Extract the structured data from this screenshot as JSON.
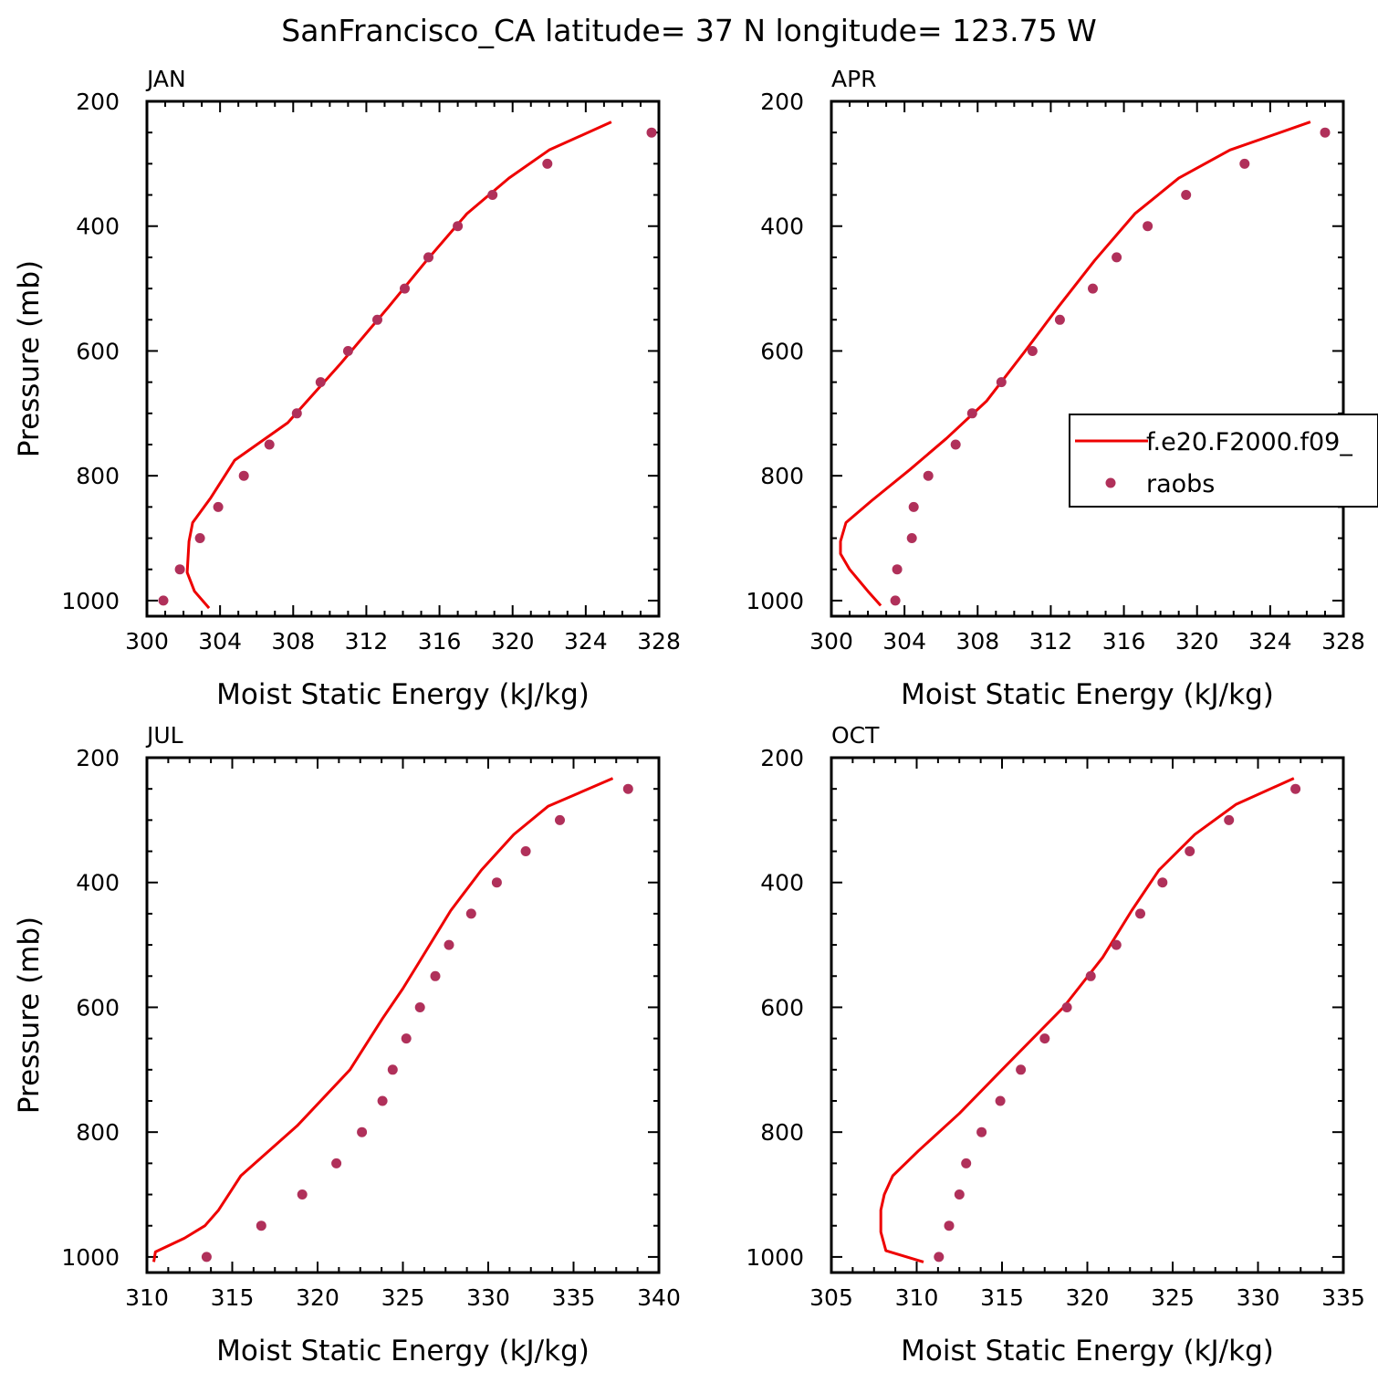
{
  "figure_title": "SanFrancisco_CA  latitude= 37 N longitude= 123.75 W",
  "legend": {
    "model_label": "f.e20.F2000.f09_",
    "obs_label": "raobs"
  },
  "colors": {
    "model": "#ee0000",
    "obs": "#b0305a"
  },
  "chart_data": [
    {
      "type": "line",
      "panel": "JAN",
      "title": "JAN",
      "xlabel": "Moist Static Energy (kJ/kg)",
      "ylabel": "Pressure (mb)",
      "xlim": [
        300,
        328
      ],
      "ylim": [
        1025,
        200
      ],
      "xticks": [
        300,
        304,
        308,
        312,
        316,
        320,
        324,
        328
      ],
      "yticks": [
        200,
        400,
        600,
        800,
        1000
      ],
      "series": [
        {
          "name": "f.e20.F2000.f09_",
          "kind": "line",
          "points": [
            [
              325.4,
              233
            ],
            [
              322,
              278
            ],
            [
              319.8,
              323
            ],
            [
              317.5,
              380
            ],
            [
              315.3,
              455
            ],
            [
              313.2,
              530
            ],
            [
              310.6,
              620
            ],
            [
              307.7,
              715
            ],
            [
              304.8,
              775
            ],
            [
              303.5,
              835
            ],
            [
              302.5,
              875
            ],
            [
              302.3,
              905
            ],
            [
              302.2,
              955
            ],
            [
              302.6,
              985
            ],
            [
              303.4,
              1012
            ]
          ]
        },
        {
          "name": "raobs",
          "kind": "scatter",
          "points": [
            [
              327.6,
              250
            ],
            [
              321.9,
              300
            ],
            [
              318.9,
              350
            ],
            [
              317,
              400
            ],
            [
              315.4,
              450
            ],
            [
              314.1,
              500
            ],
            [
              312.6,
              550
            ],
            [
              311,
              600
            ],
            [
              309.5,
              650
            ],
            [
              308.2,
              700
            ],
            [
              306.7,
              750
            ],
            [
              305.3,
              800
            ],
            [
              303.9,
              850
            ],
            [
              302.9,
              900
            ],
            [
              301.8,
              950
            ],
            [
              300.9,
              1000
            ]
          ]
        }
      ]
    },
    {
      "type": "line",
      "panel": "APR",
      "title": "APR",
      "xlabel": "Moist Static Energy (kJ/kg)",
      "ylabel": "",
      "xlim": [
        300,
        328
      ],
      "ylim": [
        1025,
        200
      ],
      "xticks": [
        300,
        304,
        308,
        312,
        316,
        320,
        324,
        328
      ],
      "yticks": [
        200,
        400,
        600,
        800,
        1000
      ],
      "series": [
        {
          "name": "f.e20.F2000.f09_",
          "kind": "line",
          "points": [
            [
              326.2,
              233
            ],
            [
              321.8,
              278
            ],
            [
              319,
              323
            ],
            [
              316.6,
              380
            ],
            [
              314.4,
              455
            ],
            [
              312.4,
              530
            ],
            [
              310.6,
              600
            ],
            [
              308.5,
              680
            ],
            [
              306.3,
              740
            ],
            [
              304.3,
              790
            ],
            [
              302.2,
              840
            ],
            [
              300.8,
              875
            ],
            [
              300.5,
              905
            ],
            [
              300.5,
              925
            ],
            [
              301,
              950
            ],
            [
              302,
              985
            ],
            [
              302.7,
              1008
            ]
          ]
        },
        {
          "name": "raobs",
          "kind": "scatter",
          "points": [
            [
              327,
              250
            ],
            [
              322.6,
              300
            ],
            [
              319.4,
              350
            ],
            [
              317.3,
              400
            ],
            [
              315.6,
              450
            ],
            [
              314.3,
              500
            ],
            [
              312.5,
              550
            ],
            [
              311,
              600
            ],
            [
              309.3,
              650
            ],
            [
              307.7,
              700
            ],
            [
              306.8,
              750
            ],
            [
              305.3,
              800
            ],
            [
              304.5,
              850
            ],
            [
              304.4,
              900
            ],
            [
              303.6,
              950
            ],
            [
              303.5,
              1000
            ]
          ]
        }
      ]
    },
    {
      "type": "line",
      "panel": "JUL",
      "title": "JUL",
      "xlabel": "Moist Static Energy (kJ/kg)",
      "ylabel": "Pressure (mb)",
      "xlim": [
        310,
        340
      ],
      "ylim": [
        1025,
        200
      ],
      "xticks": [
        310,
        315,
        320,
        325,
        330,
        335,
        340
      ],
      "yticks": [
        200,
        400,
        600,
        800,
        1000
      ],
      "series": [
        {
          "name": "f.e20.F2000.f09_",
          "kind": "line",
          "points": [
            [
              337.3,
              233
            ],
            [
              333.5,
              278
            ],
            [
              331.5,
              323
            ],
            [
              329.6,
              380
            ],
            [
              327.8,
              445
            ],
            [
              325.9,
              530
            ],
            [
              325,
              570
            ],
            [
              323.8,
              618
            ],
            [
              321.9,
              700
            ],
            [
              318.8,
              790
            ],
            [
              315.5,
              870
            ],
            [
              314.2,
              925
            ],
            [
              313.4,
              950
            ],
            [
              312.2,
              970
            ],
            [
              310.5,
              992
            ],
            [
              310.4,
              1008
            ]
          ]
        },
        {
          "name": "raobs",
          "kind": "scatter",
          "points": [
            [
              338.2,
              250
            ],
            [
              334.2,
              300
            ],
            [
              332.2,
              350
            ],
            [
              330.5,
              400
            ],
            [
              329,
              450
            ],
            [
              327.7,
              500
            ],
            [
              326.9,
              550
            ],
            [
              326,
              600
            ],
            [
              325.2,
              650
            ],
            [
              324.4,
              700
            ],
            [
              323.8,
              750
            ],
            [
              322.6,
              800
            ],
            [
              321.1,
              850
            ],
            [
              319.1,
              900
            ],
            [
              316.7,
              950
            ],
            [
              313.5,
              1000
            ]
          ]
        }
      ]
    },
    {
      "type": "line",
      "panel": "OCT",
      "title": "OCT",
      "xlabel": "Moist Static Energy (kJ/kg)",
      "ylabel": "",
      "xlim": [
        305,
        335
      ],
      "ylim": [
        1025,
        200
      ],
      "xticks": [
        305,
        310,
        315,
        320,
        325,
        330,
        335
      ],
      "yticks": [
        200,
        400,
        600,
        800,
        1000
      ],
      "series": [
        {
          "name": "f.e20.F2000.f09_",
          "kind": "line",
          "points": [
            [
              332.1,
              233
            ],
            [
              328.7,
              275
            ],
            [
              326.3,
              323
            ],
            [
              324.2,
              380
            ],
            [
              322.6,
              445
            ],
            [
              320.9,
              520
            ],
            [
              318.6,
              600
            ],
            [
              315,
              700
            ],
            [
              312.5,
              770
            ],
            [
              310.1,
              830
            ],
            [
              308.6,
              870
            ],
            [
              308.1,
              900
            ],
            [
              307.9,
              925
            ],
            [
              307.9,
              960
            ],
            [
              308.2,
              990
            ],
            [
              310.4,
              1008
            ]
          ]
        },
        {
          "name": "raobs",
          "kind": "scatter",
          "points": [
            [
              332.2,
              250
            ],
            [
              328.3,
              300
            ],
            [
              326,
              350
            ],
            [
              324.4,
              400
            ],
            [
              323.1,
              450
            ],
            [
              321.7,
              500
            ],
            [
              320.2,
              550
            ],
            [
              318.8,
              600
            ],
            [
              317.5,
              650
            ],
            [
              316.1,
              700
            ],
            [
              314.9,
              750
            ],
            [
              313.8,
              800
            ],
            [
              312.9,
              850
            ],
            [
              312.5,
              900
            ],
            [
              311.9,
              950
            ],
            [
              311.3,
              1000
            ]
          ]
        }
      ]
    }
  ]
}
